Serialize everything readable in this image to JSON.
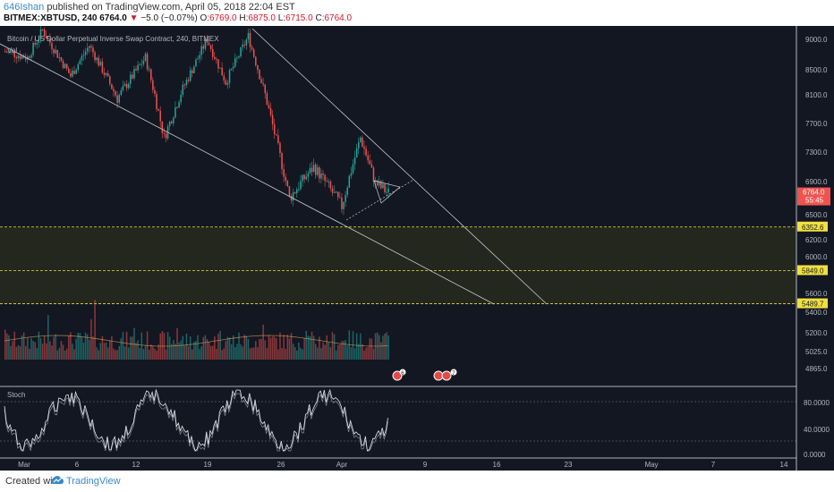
{
  "header": {
    "user": "646Ishan",
    "published": "published on TradingView.com, April 05, 2018 22:04 EST",
    "symbol": "BITMEX:XBTUSD, 240",
    "last": "6764.0",
    "change_arrow": "▼",
    "change": "−5.0 (−0.07%)",
    "o_label": "O:",
    "o_val": "6769.0",
    "h_label": "H:",
    "h_val": "6875.0",
    "l_label": "L:",
    "l_val": "6715.0",
    "c_label": "C:",
    "c_val": "6764.0"
  },
  "legend": {
    "title": "Bitcoin / US Dollar Perpetual Inverse Swap Contract, 240, BITMEX",
    "vol": "Vol",
    "stoch": "Stoch"
  },
  "footer": {
    "created": "Created with",
    "brand": "TradingView"
  },
  "colors": {
    "background": "#131722",
    "up": "#26a69a",
    "down": "#ef5350",
    "trendline": "#c8ccd4",
    "support": "#f0e040",
    "support_zone": "#2a2d1e",
    "price_tag": "#ef5350"
  },
  "chart_data": {
    "type": "candlestick",
    "x_tick_labels": [
      "Mar",
      "6",
      "12",
      "19",
      "26",
      "Apr",
      "9",
      "16",
      "23",
      "May",
      "7",
      "14"
    ],
    "price_ticks": [
      "9000.0",
      "8500.0",
      "8100.0",
      "7700.0",
      "7300.0",
      "6900.0",
      "6500.0",
      "6200.0",
      "6000.0",
      "5600.0",
      "5400.0",
      "5200.0",
      "5025.0",
      "4865.0"
    ],
    "stoch_ticks": [
      "80.0000",
      "40.0000",
      "0.0000"
    ],
    "current_price": "6764.0",
    "countdown": "55:45",
    "support_levels": [
      "6352.6",
      "5849.0",
      "5489.7"
    ],
    "event_badges": [
      "6",
      "7"
    ],
    "pattern": "falling wedge",
    "grid": false
  }
}
